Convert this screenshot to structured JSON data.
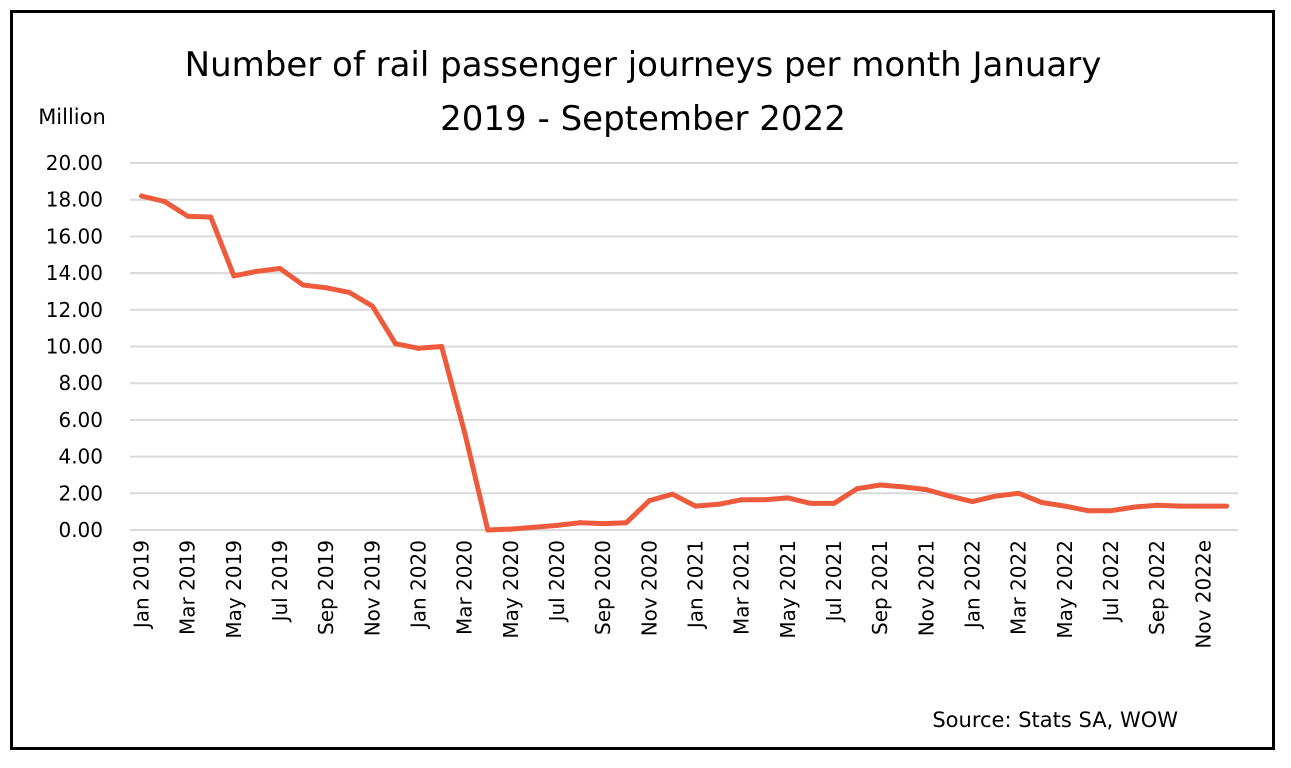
{
  "chart_data": {
    "type": "line",
    "title_lines": [
      "Number of rail passenger journeys per month January",
      "2019 - September 2022"
    ],
    "unit_label": "Million",
    "source": "Source: Stats SA, WOW",
    "ylim": [
      0,
      20
    ],
    "y_ticks": [
      "0.00",
      "2.00",
      "4.00",
      "6.00",
      "8.00",
      "10.00",
      "12.00",
      "14.00",
      "16.00",
      "18.00",
      "20.00"
    ],
    "grid": true,
    "line_color": "#ee5a3c",
    "categories": [
      "Jan 2019",
      "Feb 2019",
      "Mar 2019",
      "Apr 2019",
      "May 2019",
      "Jun 2019",
      "Jul 2019",
      "Aug 2019",
      "Sep 2019",
      "Oct 2019",
      "Nov 2019",
      "Dec 2019",
      "Jan 2020",
      "Feb 2020",
      "Mar 2020",
      "Apr 2020",
      "May 2020",
      "Jun 2020",
      "Jul 2020",
      "Aug 2020",
      "Sep 2020",
      "Oct 2020",
      "Nov 2020",
      "Dec 2020",
      "Jan 2021",
      "Feb 2021",
      "Mar 2021",
      "Apr 2021",
      "May 2021",
      "Jun 2021",
      "Jul 2021",
      "Aug 2021",
      "Sep 2021",
      "Oct 2021",
      "Nov 2021",
      "Dec 2021",
      "Jan 2022",
      "Feb 2022",
      "Mar 2022",
      "Apr 2022",
      "May 2022",
      "Jun 2022",
      "Jul 2022",
      "Aug 2022",
      "Sep 2022",
      "Oct 2022",
      "Nov 2022e",
      "Dec 2022e"
    ],
    "tick_labels": [
      "Jan 2019",
      "Mar 2019",
      "May 2019",
      "Jul 2019",
      "Sep 2019",
      "Nov 2019",
      "Jan 2020",
      "Mar 2020",
      "May 2020",
      "Jul 2020",
      "Sep 2020",
      "Nov 2020",
      "Jan 2021",
      "Mar 2021",
      "May 2021",
      "Jul 2021",
      "Sep 2021",
      "Nov 2021",
      "Jan 2022",
      "Mar 2022",
      "May 2022",
      "Jul 2022",
      "Sep 2022",
      "Nov 2022e"
    ],
    "values": [
      18.2,
      17.9,
      17.1,
      17.05,
      13.85,
      14.1,
      14.25,
      13.35,
      13.2,
      12.95,
      12.2,
      10.15,
      9.9,
      10.0,
      5.3,
      0.0,
      0.05,
      0.15,
      0.25,
      0.4,
      0.35,
      0.4,
      1.6,
      1.95,
      1.3,
      1.4,
      1.65,
      1.65,
      1.75,
      1.45,
      1.45,
      2.25,
      2.45,
      2.35,
      2.2,
      1.85,
      1.55,
      1.85,
      2.0,
      1.5,
      1.3,
      1.05,
      1.05,
      1.25,
      1.35,
      1.3,
      1.3,
      1.3
    ]
  }
}
